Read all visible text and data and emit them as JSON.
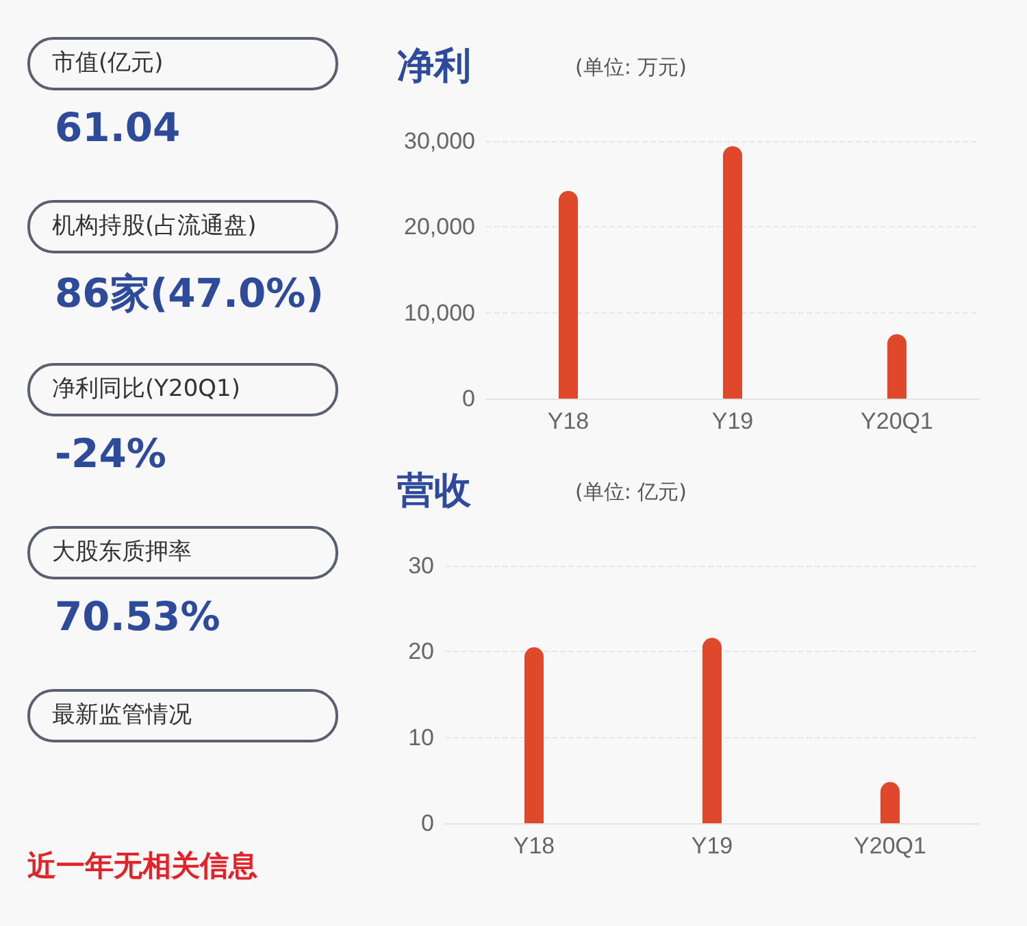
{
  "chart_data": [
    {
      "type": "other",
      "annotations": [
        "市值(亿元)",
        "61.04",
        "机构持股(占流通盘)",
        "86家(47.0%)",
        "净利同比(Y20Q1)",
        "-24%",
        "大股东质押率",
        "70.53%",
        "最新监管情况",
        "近一年无相关信息"
      ]
    },
    {
      "type": "bar",
      "title": "净利",
      "subtitle": "(单位: 万元)",
      "categories": [
        "Y18",
        "Y19",
        "Y20Q1"
      ],
      "values": [
        24200,
        29400,
        7500
      ],
      "color": "#e0482b",
      "ylim": [
        0,
        30000
      ],
      "yticks": [
        {
          "value": 0,
          "label": "0"
        },
        {
          "value": 10000,
          "label": "10,000"
        },
        {
          "value": 20000,
          "label": "20,000"
        },
        {
          "value": 30000,
          "label": "30,000"
        }
      ],
      "grid": "y"
    },
    {
      "type": "bar",
      "title": "营收",
      "subtitle": "(单位: 亿元)",
      "categories": [
        "Y18",
        "Y19",
        "Y20Q1"
      ],
      "values": [
        20.5,
        21.6,
        4.8
      ],
      "color": "#e0482b",
      "ylim": [
        0,
        30
      ],
      "yticks": [
        0,
        10,
        20,
        30
      ],
      "grid": "y"
    }
  ]
}
